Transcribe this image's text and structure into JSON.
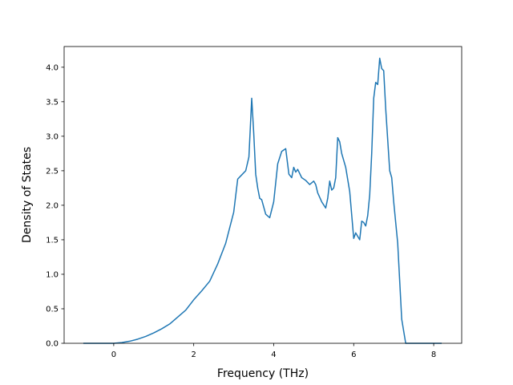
{
  "chart_data": {
    "type": "line",
    "title": "",
    "xlabel": "Frequency (THz)",
    "ylabel": "Density of States",
    "xlim": [
      -1.24,
      8.7
    ],
    "ylim": [
      0,
      4.3
    ],
    "xticks": [
      0,
      2,
      4,
      6,
      8
    ],
    "xtick_labels": [
      "0",
      "2",
      "4",
      "6",
      "8"
    ],
    "yticks": [
      0,
      0.5,
      1,
      1.5,
      2,
      2.5,
      3,
      3.5,
      4
    ],
    "ytick_labels": [
      "0.0",
      "0.5",
      "1.0",
      "1.5",
      "2.0",
      "2.5",
      "3.0",
      "3.5",
      "4.0"
    ],
    "grid": false,
    "line_color": "#1f77b4",
    "series": [
      {
        "x": [
          -0.76,
          -0.5,
          0.0,
          0.2,
          0.4,
          0.6,
          0.8,
          1.0,
          1.2,
          1.4,
          1.6,
          1.8,
          2.0,
          2.2,
          2.4,
          2.6,
          2.8,
          3.0,
          3.1,
          3.2,
          3.3,
          3.38,
          3.45,
          3.5,
          3.55,
          3.6,
          3.65,
          3.7,
          3.8,
          3.9,
          4.0,
          4.1,
          4.2,
          4.3,
          4.38,
          4.45,
          4.5,
          4.55,
          4.6,
          4.7,
          4.8,
          4.9,
          5.0,
          5.05,
          5.1,
          5.2,
          5.3,
          5.35,
          5.4,
          5.45,
          5.5,
          5.55,
          5.6,
          5.65,
          5.7,
          5.8,
          5.9,
          6.0,
          6.05,
          6.1,
          6.15,
          6.2,
          6.25,
          6.3,
          6.35,
          6.4,
          6.45,
          6.5,
          6.55,
          6.6,
          6.65,
          6.7,
          6.75,
          6.8,
          6.85,
          6.9,
          6.95,
          7.0,
          7.05,
          7.1,
          7.15,
          7.2,
          7.3,
          7.4,
          7.45,
          7.5,
          7.6,
          8.2
        ],
        "y": [
          0.0,
          0.0,
          0.0,
          0.01,
          0.03,
          0.06,
          0.1,
          0.15,
          0.21,
          0.28,
          0.38,
          0.48,
          0.63,
          0.76,
          0.9,
          1.15,
          1.45,
          1.9,
          2.38,
          2.44,
          2.5,
          2.7,
          3.55,
          3.05,
          2.45,
          2.25,
          2.1,
          2.08,
          1.87,
          1.82,
          2.05,
          2.6,
          2.78,
          2.82,
          2.45,
          2.4,
          2.55,
          2.48,
          2.52,
          2.4,
          2.36,
          2.3,
          2.35,
          2.3,
          2.18,
          2.05,
          1.96,
          2.1,
          2.35,
          2.22,
          2.25,
          2.4,
          2.98,
          2.92,
          2.75,
          2.55,
          2.2,
          1.52,
          1.6,
          1.55,
          1.5,
          1.77,
          1.75,
          1.7,
          1.85,
          2.15,
          2.75,
          3.55,
          3.78,
          3.75,
          4.13,
          3.98,
          3.95,
          3.4,
          2.95,
          2.5,
          2.4,
          2.05,
          1.75,
          1.45,
          0.9,
          0.35,
          0.0,
          0.0,
          0.0,
          0.0,
          0.0,
          0.0
        ]
      }
    ]
  }
}
